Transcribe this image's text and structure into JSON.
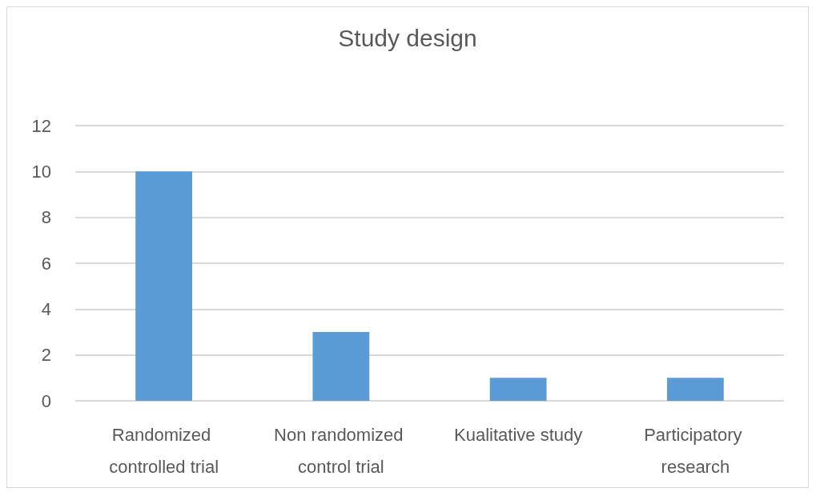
{
  "chart_data": {
    "type": "bar",
    "title": "Study design",
    "categories": [
      "Randomized controlled trial",
      "Non randomized control trial",
      "Kualitative study",
      "Participatory research"
    ],
    "values": [
      10,
      3,
      1,
      1
    ],
    "color": "#5b9bd5",
    "ylim": [
      0,
      12
    ],
    "yticks": [
      0,
      2,
      4,
      6,
      8,
      10,
      12
    ],
    "grid": "y"
  }
}
